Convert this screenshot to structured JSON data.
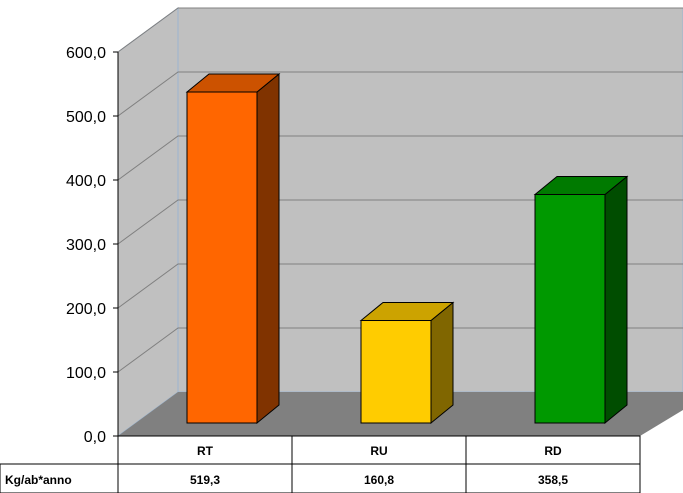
{
  "chart_data": {
    "type": "bar",
    "title": "",
    "xlabel": "",
    "ylabel": "",
    "categories": [
      "RT",
      "RU",
      "RD"
    ],
    "values": [
      519.3,
      160.8,
      358.5
    ],
    "ylim": [
      0,
      600
    ],
    "y_ticks": [
      "0,0",
      "100,0",
      "200,0",
      "300,0",
      "400,0",
      "500,0",
      "600,0"
    ],
    "value_labels": [
      "519,3",
      "160,8",
      "358,5"
    ],
    "bar_colors": [
      "#FF6600",
      "#FFCC00",
      "#009900"
    ],
    "grid": true,
    "style": "3d",
    "data_table": {
      "row_label": "Kg/ab*anno",
      "values": [
        "519,3",
        "160,8",
        "358,5"
      ]
    }
  },
  "colors": {
    "wall": "#C0C0C0",
    "floor": "#808080",
    "gridline": "#808080"
  }
}
